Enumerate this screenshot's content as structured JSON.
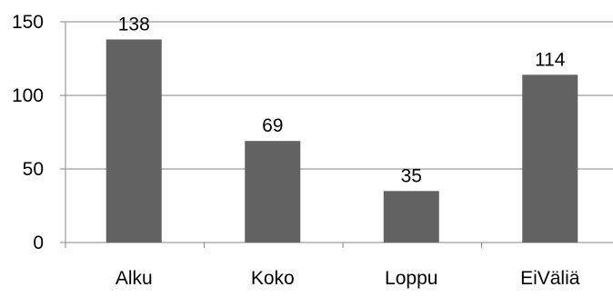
{
  "chart_data": {
    "type": "bar",
    "categories": [
      "Alku",
      "Koko",
      "Loppu",
      "EiVäliä"
    ],
    "values": [
      138,
      69,
      35,
      114
    ],
    "data_labels": [
      "138",
      "69",
      "35",
      "114"
    ],
    "ylim": [
      0,
      150
    ],
    "yticks": [
      0,
      50,
      100,
      150
    ],
    "ytick_labels": [
      "0",
      "50",
      "100",
      "150"
    ],
    "grid": true,
    "legend": "none"
  },
  "colors": {
    "bar": "#626262",
    "grid": "#868686",
    "axis": "#868686",
    "text": "#000000",
    "background": "#ffffff"
  }
}
